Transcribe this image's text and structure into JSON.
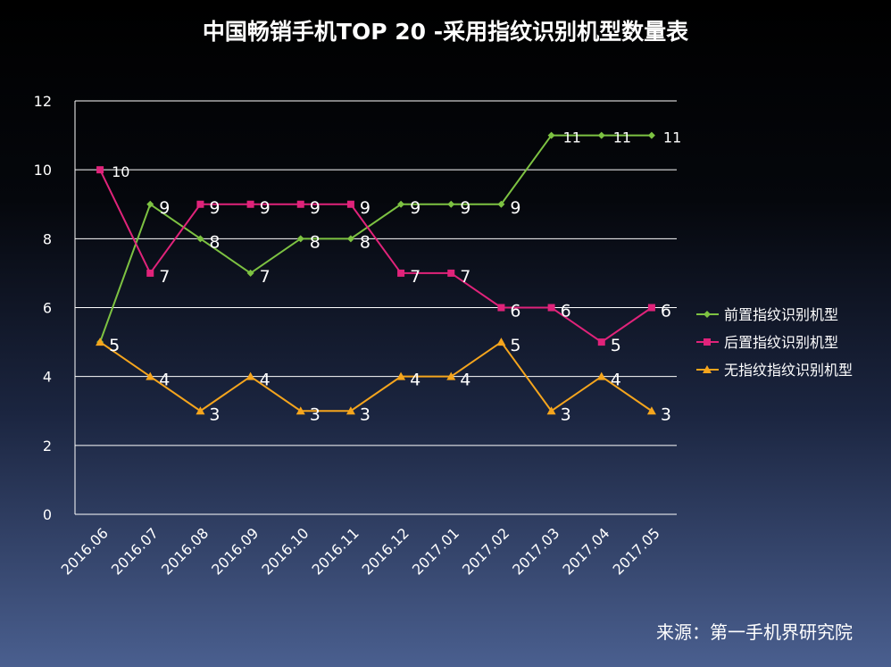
{
  "chart_data": {
    "type": "line",
    "title": "中国畅销手机TOP 20 -采用指纹识别机型数量表",
    "categories": [
      "2016.06",
      "2016.07",
      "2016.08",
      "2016.09",
      "2016.10",
      "2016.11",
      "2016.12",
      "2017.01",
      "2017.02",
      "2017.03",
      "2017.04",
      "2017.05"
    ],
    "series": [
      {
        "name": "前置指纹识别机型",
        "color": "#7dc242",
        "marker": "diamond",
        "values": [
          5,
          9,
          8,
          7,
          8,
          8,
          9,
          9,
          9,
          11,
          11,
          11
        ]
      },
      {
        "name": "后置指纹识别机型",
        "color": "#e0237a",
        "marker": "square",
        "values": [
          10,
          7,
          9,
          9,
          9,
          9,
          7,
          7,
          6,
          6,
          5,
          6
        ]
      },
      {
        "name": "无指纹指纹识别机型",
        "color": "#f5a51d",
        "marker": "triangle",
        "values": [
          5,
          4,
          3,
          4,
          3,
          3,
          4,
          4,
          5,
          3,
          4,
          3
        ]
      }
    ],
    "ylim": [
      0,
      12
    ],
    "yticks": [
      0,
      2,
      4,
      6,
      8,
      10,
      12
    ],
    "xlabel": "",
    "ylabel": "",
    "grid": true,
    "legend_position": "right",
    "data_labels": true
  },
  "source_text": "来源：第一手机界研究院"
}
